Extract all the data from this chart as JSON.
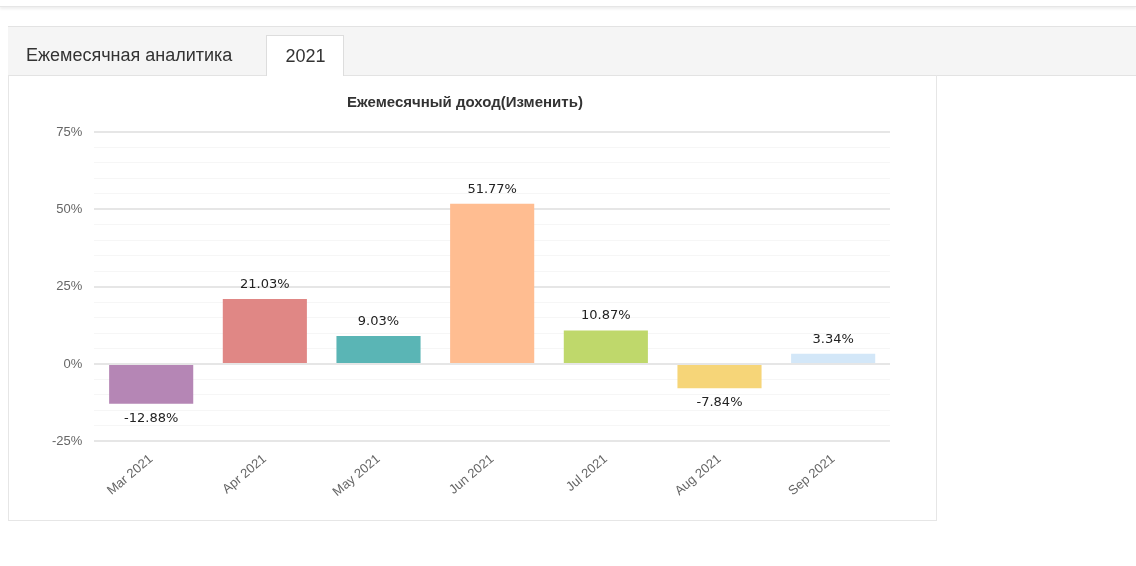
{
  "chart_data": {
    "type": "bar",
    "title": "Ежемесячный доход(Изменить)",
    "annotations": [
      "Ежемесячная аналитика",
      "2021"
    ],
    "categories": [
      "Mar 2021",
      "Apr 2021",
      "May 2021",
      "Jun 2021",
      "Jul 2021",
      "Aug 2021",
      "Sep 2021"
    ],
    "values": [
      -12.88,
      21.03,
      9.03,
      51.77,
      10.87,
      -7.84,
      3.34
    ],
    "value_labels": [
      "-12.88%",
      "21.03%",
      "9.03%",
      "51.77%",
      "10.87%",
      "-7.84%",
      "3.34%"
    ],
    "colors": [
      "#b586b5",
      "#e08785",
      "#5ab5b5",
      "#ffbd91",
      "#bfd86b",
      "#f6d578",
      "#d3e7f8"
    ],
    "ylim": [
      -25,
      75
    ],
    "yticks": [
      {
        "value": -25,
        "label": "-25%"
      },
      {
        "value": -20,
        "label": null
      },
      {
        "value": -15,
        "label": null
      },
      {
        "value": -10,
        "label": null
      },
      {
        "value": -5,
        "label": null
      },
      {
        "value": 0,
        "label": "0%"
      },
      {
        "value": 5,
        "label": null
      },
      {
        "value": 10,
        "label": null
      },
      {
        "value": 15,
        "label": null
      },
      {
        "value": 20,
        "label": null
      },
      {
        "value": 25,
        "label": "25%"
      },
      {
        "value": 30,
        "label": null
      },
      {
        "value": 35,
        "label": null
      },
      {
        "value": 40,
        "label": null
      },
      {
        "value": 45,
        "label": null
      },
      {
        "value": 50,
        "label": "50%"
      },
      {
        "value": 55,
        "label": null
      },
      {
        "value": 60,
        "label": null
      },
      {
        "value": 65,
        "label": null
      },
      {
        "value": 70,
        "label": null
      },
      {
        "value": 75,
        "label": "75%"
      }
    ],
    "grid": "y",
    "legend": false
  }
}
